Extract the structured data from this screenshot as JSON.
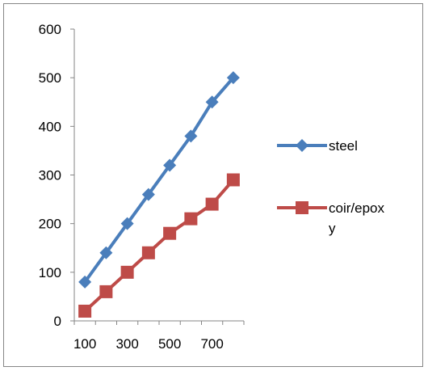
{
  "chart_data": {
    "type": "line",
    "title": "",
    "xlabel": "",
    "ylabel": "",
    "x": [
      100,
      200,
      300,
      400,
      500,
      600,
      700,
      800
    ],
    "x_tick_labels": [
      "100",
      "300",
      "500",
      "700"
    ],
    "ylim": [
      0,
      600
    ],
    "y_tick_labels": [
      "0",
      "100",
      "200",
      "300",
      "400",
      "500",
      "600"
    ],
    "y_ticks": [
      0,
      100,
      200,
      300,
      400,
      500,
      600
    ],
    "grid": false,
    "legend_position": "right",
    "series": [
      {
        "name": "steel",
        "marker": "diamond",
        "color": "#4a7ebb",
        "values": [
          80,
          140,
          200,
          260,
          320,
          380,
          450,
          500
        ]
      },
      {
        "name": "coir/epox",
        "name_wrap": "y",
        "marker": "square",
        "color": "#be4b48",
        "values": [
          20,
          60,
          100,
          140,
          180,
          210,
          240,
          290
        ]
      }
    ]
  }
}
